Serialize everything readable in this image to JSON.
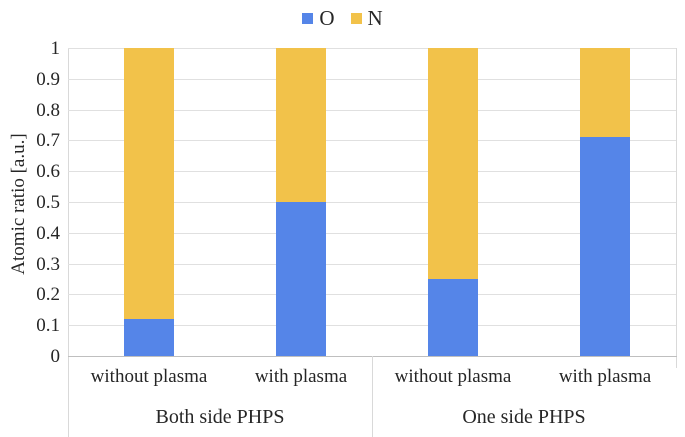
{
  "chart_data": {
    "type": "bar",
    "stacked": true,
    "title": "",
    "ylabel": "Atomic ratio [a.u.]",
    "xlabel": "",
    "ylim": [
      0,
      1
    ],
    "ytick_step": 0.1,
    "ytick_labels": [
      "0",
      "0.1",
      "0.2",
      "0.3",
      "0.4",
      "0.5",
      "0.6",
      "0.7",
      "0.8",
      "0.9",
      "1"
    ],
    "grid": true,
    "legend_position": "top",
    "categories": [
      "without plasma",
      "with plasma",
      "without plasma",
      "with plasma"
    ],
    "groups": [
      {
        "label": "Both side PHPS",
        "category_indices": [
          0,
          1
        ]
      },
      {
        "label": "One side PHPS",
        "category_indices": [
          2,
          3
        ]
      }
    ],
    "series": [
      {
        "name": "O",
        "color": "#5585e8",
        "values": [
          0.12,
          0.5,
          0.25,
          0.71
        ]
      },
      {
        "name": "N",
        "color": "#f2c24a",
        "values": [
          0.88,
          0.5,
          0.75,
          0.29
        ]
      }
    ]
  },
  "colors": {
    "gridline": "#e0e0e0",
    "axis_line": "#bfbfbf",
    "border": "#d9d9d9",
    "text": "#262626"
  }
}
